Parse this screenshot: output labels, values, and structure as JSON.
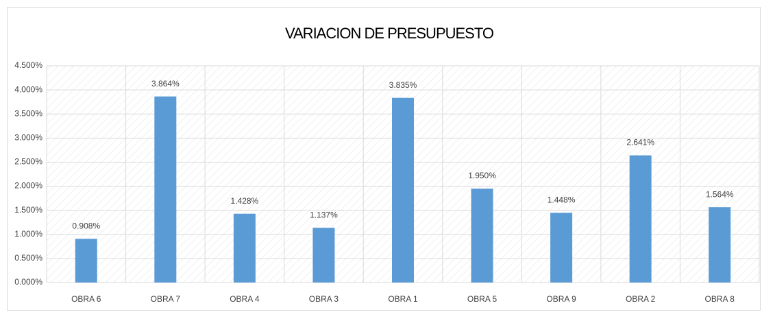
{
  "chart_data": {
    "type": "bar",
    "title": "VARIACION DE PRESUPUESTO",
    "categories": [
      "OBRA 6",
      "OBRA 7",
      "OBRA 4",
      "OBRA 3",
      "OBRA 1",
      "OBRA 5",
      "OBRA 9",
      "OBRA 2",
      "OBRA 8"
    ],
    "values": [
      0.908,
      3.864,
      1.428,
      1.137,
      3.835,
      1.95,
      1.448,
      2.641,
      1.564
    ],
    "value_labels": [
      "0.908%",
      "3.864%",
      "1.428%",
      "1.137%",
      "3.835%",
      "1.950%",
      "1.448%",
      "2.641%",
      "1.564%"
    ],
    "color": "#5b9bd5",
    "ylim": [
      0,
      4.5
    ],
    "yticks": [
      {
        "value": 0,
        "label": "0.000%"
      },
      {
        "value": 0.5,
        "label": "0.500%"
      },
      {
        "value": 1,
        "label": "1.000%"
      },
      {
        "value": 1.5,
        "label": "1.500%"
      },
      {
        "value": 2,
        "label": "2.000%"
      },
      {
        "value": 2.5,
        "label": "2.500%"
      },
      {
        "value": 3,
        "label": "3.000%"
      },
      {
        "value": 3.5,
        "label": "3.500%"
      },
      {
        "value": 4,
        "label": "4.000%"
      },
      {
        "value": 4.5,
        "label": "4.500%"
      }
    ],
    "grid": true
  }
}
